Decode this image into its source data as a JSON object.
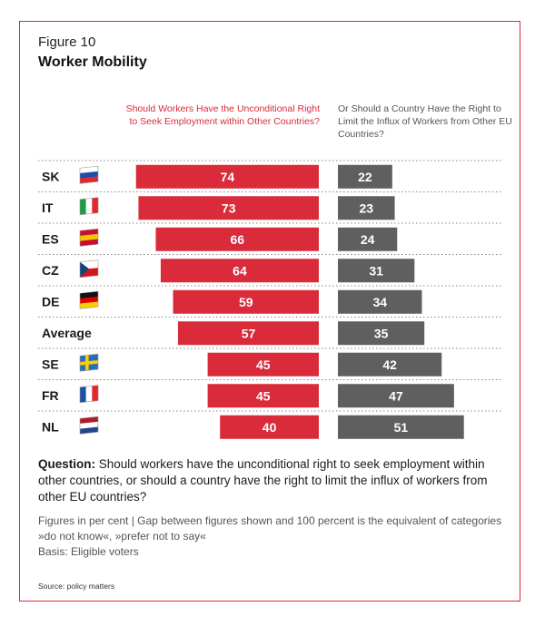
{
  "figure": {
    "label": "Figure 10",
    "title": "Worker Mobility"
  },
  "headers": {
    "left": "Should Workers Have the Unconditional Right to Seek Employment within Other Countries?",
    "right": "Or Should a Country Have the Right to Limit the Influx of Workers from Other EU Countries?"
  },
  "colors": {
    "accent_red": "#d92b3a",
    "bar_gray": "#5f5f5f",
    "frame": "#d92b3a"
  },
  "chart_data": {
    "type": "bar",
    "orientation": "horizontal-diverging",
    "categories": [
      "SK",
      "IT",
      "ES",
      "CZ",
      "DE",
      "Average",
      "SE",
      "FR",
      "NL"
    ],
    "flags": [
      "flag-slovakia-icon",
      "flag-italy-icon",
      "flag-spain-icon",
      "flag-czechia-icon",
      "flag-germany-icon",
      "",
      "flag-sweden-icon",
      "flag-france-icon",
      "flag-netherlands-icon"
    ],
    "series": [
      {
        "name": "Should Workers Have the Unconditional Right to Seek Employment within Other Countries?",
        "color": "#d92b3a",
        "values": [
          74,
          73,
          66,
          64,
          59,
          57,
          45,
          45,
          40
        ]
      },
      {
        "name": "Or Should a Country Have the Right to Limit the Influx of Workers from Other EU Countries?",
        "color": "#5f5f5f",
        "values": [
          22,
          23,
          24,
          31,
          34,
          35,
          42,
          47,
          51
        ]
      }
    ],
    "unit": "per cent",
    "xlim": [
      0,
      100
    ],
    "grid": false,
    "legend": "column headers above bars"
  },
  "question": {
    "label": "Question:",
    "text": "Should workers have the unconditional right to seek employment within other countries, or should a country have the right to limit the influx of workers from other EU countries?"
  },
  "notes": {
    "line1": "Figures in per cent | Gap between figures shown and 100 percent is the equivalent of categories »do not know«, »prefer not to say«",
    "line2": "Basis: Eligible voters"
  },
  "source": "Source: policy matters"
}
